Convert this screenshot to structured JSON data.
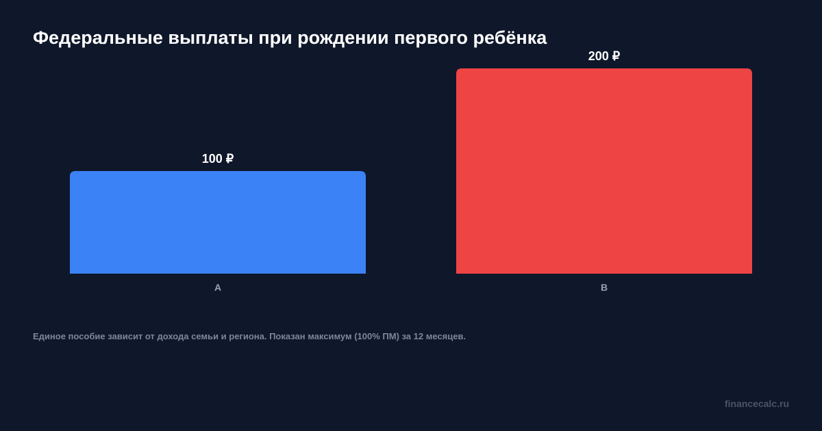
{
  "chart_data": {
    "type": "bar",
    "title": "Федеральные выплаты при рождении первого ребёнка",
    "categories": [
      "A",
      "B"
    ],
    "values": [
      100,
      200
    ],
    "value_labels": [
      "100 ₽",
      "200 ₽"
    ],
    "colors": [
      "#3b82f6",
      "#ef4444"
    ],
    "ylim": [
      0,
      200
    ],
    "grid": false,
    "xlabel": "",
    "ylabel": ""
  },
  "footnote": "Единое пособие зависит от дохода семьи и региона. Показан максимум (100% ПМ) за 12 месяцев.",
  "brand": "financecalc.ru",
  "colors": {
    "background": "#0f172a",
    "label": "#94a3b8"
  }
}
